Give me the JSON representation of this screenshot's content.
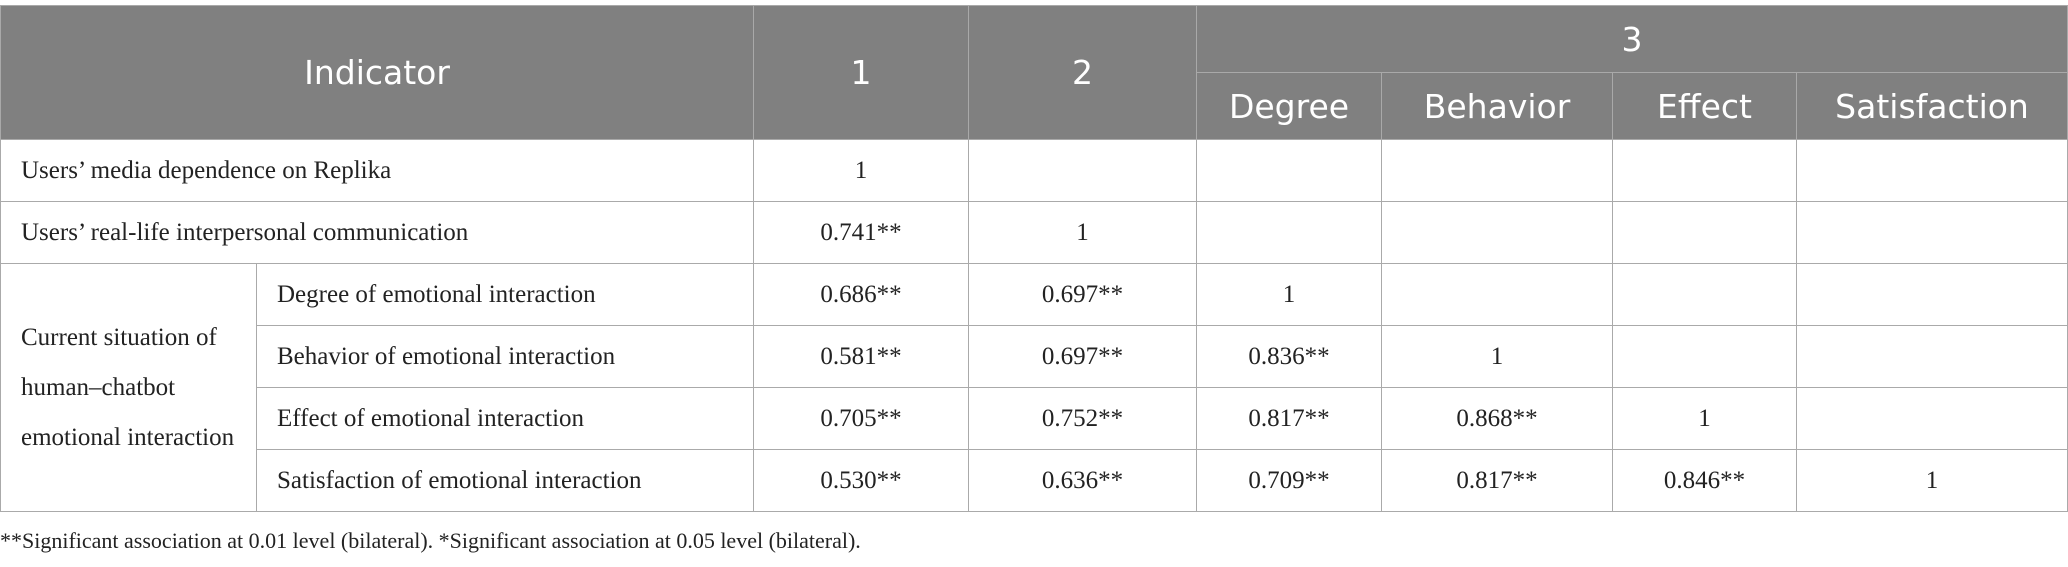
{
  "table": {
    "header": {
      "indicator": "Indicator",
      "columns": [
        "1",
        "2",
        "3"
      ],
      "subcolumns": [
        "Degree",
        "Behavior",
        "Effect",
        "Satisfaction"
      ]
    },
    "rows": [
      {
        "label": "Users’ media dependence on Replika",
        "cells": [
          "1"
        ]
      },
      {
        "label": "Users’ real-life interpersonal communication",
        "cells": [
          "0.741**",
          "1"
        ]
      }
    ],
    "group": {
      "label": "Current situation of human–chatbot emotional interaction",
      "rows": [
        {
          "label": "Degree of emotional interaction",
          "cells": [
            "0.686**",
            "0.697**",
            "1"
          ]
        },
        {
          "label": "Behavior of emotional interaction",
          "cells": [
            "0.581**",
            "0.697**",
            "0.836**",
            "1"
          ]
        },
        {
          "label": "Effect of emotional interaction",
          "cells": [
            "0.705**",
            "0.752**",
            "0.817**",
            "0.868**",
            "1"
          ]
        },
        {
          "label": "Satisfaction of emotional interaction",
          "cells": [
            "0.530**",
            "0.636**",
            "0.709**",
            "0.817**",
            "0.846**",
            "1"
          ]
        }
      ]
    }
  },
  "footnote": "**Significant association at 0.01 level (bilateral). *Significant association at 0.05 level (bilateral)."
}
